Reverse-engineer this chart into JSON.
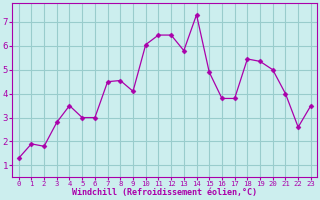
{
  "x": [
    0,
    1,
    2,
    3,
    4,
    5,
    6,
    7,
    8,
    9,
    10,
    11,
    12,
    13,
    14,
    15,
    16,
    17,
    18,
    19,
    20,
    21,
    22,
    23
  ],
  "y": [
    1.3,
    1.9,
    1.8,
    2.8,
    3.5,
    3.0,
    3.0,
    4.5,
    4.55,
    4.1,
    6.05,
    6.45,
    6.45,
    5.8,
    7.3,
    4.9,
    3.8,
    3.8,
    5.45,
    5.35,
    5.0,
    4.0,
    2.6,
    3.5
  ],
  "line_color": "#aa00aa",
  "marker": "D",
  "marker_size": 2.5,
  "bg_color": "#cceeee",
  "grid_color": "#99cccc",
  "xlabel": "Windchill (Refroidissement éolien,°C)",
  "xlabel_color": "#aa00aa",
  "ylim": [
    0.5,
    7.8
  ],
  "xlim": [
    -0.5,
    23.5
  ],
  "yticks": [
    1,
    2,
    3,
    4,
    5,
    6,
    7
  ],
  "xticks": [
    0,
    1,
    2,
    3,
    4,
    5,
    6,
    7,
    8,
    9,
    10,
    11,
    12,
    13,
    14,
    15,
    16,
    17,
    18,
    19,
    20,
    21,
    22,
    23
  ],
  "tick_label_color": "#aa00aa",
  "spine_color": "#aa00aa",
  "xlabel_fontsize": 6.0,
  "ytick_fontsize": 6.5,
  "xtick_fontsize": 5.2
}
